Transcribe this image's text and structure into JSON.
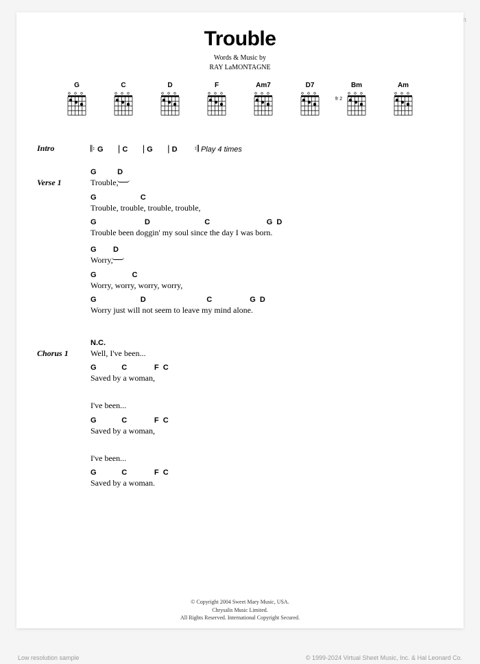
{
  "watermark": "www.virtualsheetmusic.com",
  "title": "Trouble",
  "byline_l1": "Words & Music by",
  "byline_l2": "RAY LaMONTAGNE",
  "chord_diagrams": [
    {
      "name": "G"
    },
    {
      "name": "C"
    },
    {
      "name": "D"
    },
    {
      "name": "F"
    },
    {
      "name": "Am7"
    },
    {
      "name": "D7"
    },
    {
      "name": "Bm",
      "fret": "fr 2"
    },
    {
      "name": "Am"
    }
  ],
  "intro": {
    "label": "Intro",
    "chords": [
      "G",
      "C",
      "G",
      "D"
    ],
    "play_note": "Play 4 times"
  },
  "verse1": {
    "label": "Verse 1",
    "lines": [
      {
        "chords": "G          D",
        "lyric": "Trouble,",
        "tie": true
      },
      {
        "chords": "G                     C",
        "lyric": "Trouble, trouble, trouble, trouble,"
      },
      {
        "chords": "G                       D                          C                           G  D",
        "lyric": "Trouble been doggin' my soul since the day I was born."
      },
      {
        "chords": "G        D",
        "lyric": "Worry,",
        "tie": true,
        "gap": true
      },
      {
        "chords": "G                 C",
        "lyric": "Worry, worry, worry, worry,"
      },
      {
        "chords": "G                     D                             C                  G  D",
        "lyric": "Worry just will not seem to leave my mind alone."
      }
    ]
  },
  "chorus1": {
    "label": "Chorus 1",
    "lines": [
      {
        "chords": "N.C.",
        "lyric": "Well, I've been..."
      },
      {
        "chords": "G            C             F  C",
        "lyric": "Saved by a woman,"
      },
      {
        "chords": "",
        "lyric": "I've been...",
        "gap": true
      },
      {
        "chords": "G            C             F  C",
        "lyric": "Saved by a woman,"
      },
      {
        "chords": "",
        "lyric": "I've been...",
        "gap": true
      },
      {
        "chords": "G            C             F  C",
        "lyric": "Saved by a woman."
      }
    ]
  },
  "copyright": {
    "l1": "© Copyright 2004 Sweet Mary Music, USA.",
    "l2": "Chrysalis Music Limited.",
    "l3": "All Rights Reserved. International Copyright Secured."
  },
  "footer_left": "Low resolution sample",
  "footer_right": "© 1999-2024 Virtual Sheet Music, Inc. & Hal Leonard Co.",
  "colors": {
    "page_bg": "#ffffff",
    "body_bg": "#f5f5f5",
    "text": "#000000",
    "muted": "#999999"
  }
}
